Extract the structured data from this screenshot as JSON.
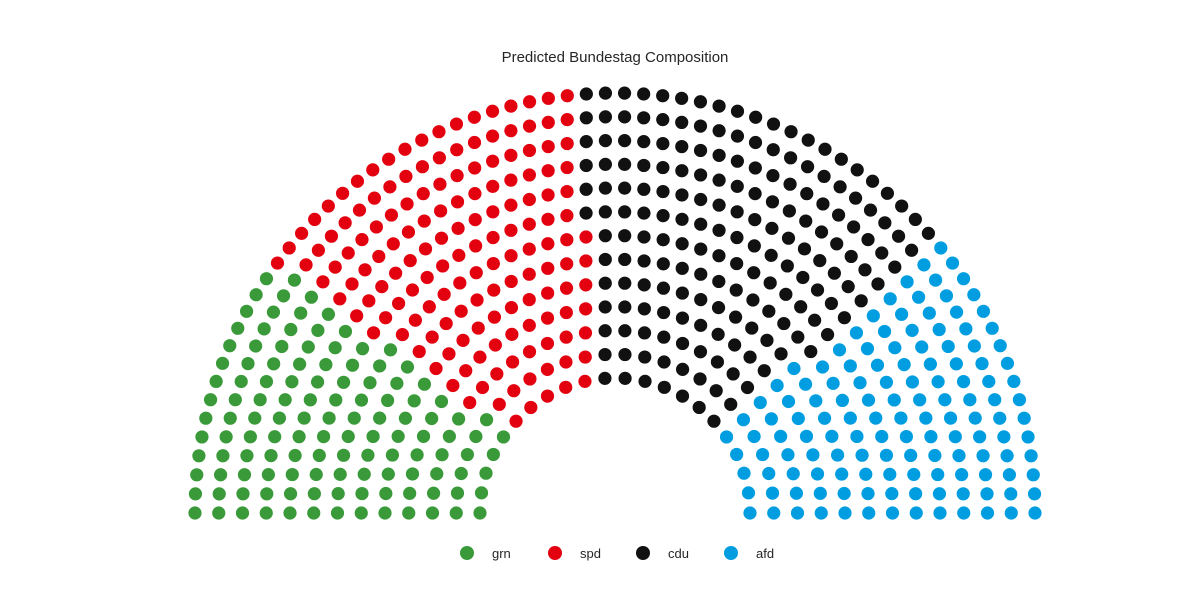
{
  "chart_data": {
    "type": "parliament",
    "title": "Predicted Bundestag Composition",
    "total_seats": 598,
    "series": [
      {
        "name": "grn",
        "seats": 125,
        "color": "#3a9a3a"
      },
      {
        "name": "spd",
        "seats": 155,
        "color": "#e3000f"
      },
      {
        "name": "cdu",
        "seats": 183,
        "color": "#111111"
      },
      {
        "name": "afd",
        "seats": 135,
        "color": "#009ee0"
      }
    ],
    "legend_position": "bottom-center"
  }
}
